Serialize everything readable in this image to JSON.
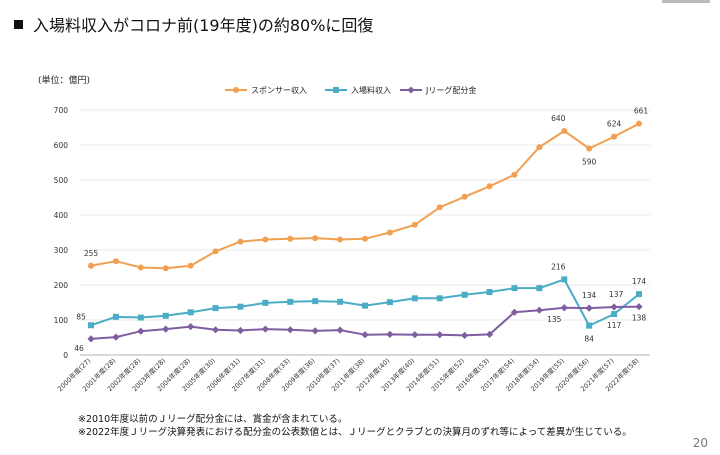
{
  "page": {
    "title": "入場料収入がコロナ前(19年度)の約80%に回復",
    "unit": "(単位：億円)",
    "footnotes": [
      "※2010年度以前のＪリーグ配分金には、賞金が含まれている。",
      "※2022年度Ｊリーグ決算発表における配分金の公表数値とは、Ｊリーグとクラブとの決算月のずれ等によって差異が生じている。"
    ],
    "page_number": "20"
  },
  "chart_data": {
    "type": "line",
    "title": "",
    "xlabel": "",
    "ylabel": "",
    "categories": [
      "2000年度(27)",
      "2001年度(28)",
      "2002年度(28)",
      "2003年度(28)",
      "2004年度(28)",
      "2005年度(30)",
      "2006年度(31)",
      "2007年度(31)",
      "2008年度(33)",
      "2009年度(36)",
      "2010年度(37)",
      "2011年度(38)",
      "2012年度(40)",
      "2013年度(40)",
      "2014年度(51)",
      "2015年度(52)",
      "2016年度(53)",
      "2017年度(54)",
      "2018年度(54)",
      "2019年度(55)",
      "2020年度(56)",
      "2021年度(57)",
      "2022年度(58)"
    ],
    "ylim": [
      0,
      700
    ],
    "yticks": [
      0,
      100,
      200,
      300,
      400,
      500,
      600,
      700
    ],
    "grid": true,
    "legend_position": "top",
    "series": [
      {
        "name": "スポンサー収入",
        "color": "#F0A050",
        "values": [
          255,
          268,
          250,
          248,
          255,
          296,
          324,
          330,
          332,
          334,
          330,
          332,
          350,
          372,
          422,
          452,
          482,
          515,
          594,
          640,
          590,
          624,
          661
        ]
      },
      {
        "name": "入場料収入",
        "color": "#4BACC6",
        "values": [
          85,
          109,
          107,
          112,
          122,
          134,
          138,
          149,
          152,
          154,
          152,
          141,
          151,
          162,
          162,
          172,
          180,
          191,
          191,
          216,
          84,
          117,
          174
        ]
      },
      {
        "name": "Jリーグ配分金",
        "color": "#7E5DA0",
        "values": [
          46,
          51,
          68,
          74,
          81,
          72,
          70,
          74,
          72,
          69,
          71,
          58,
          59,
          58,
          58,
          56,
          59,
          122,
          128,
          135,
          134,
          137,
          138
        ]
      }
    ],
    "annotations": [
      {
        "series": 0,
        "index": 0,
        "text": "255"
      },
      {
        "series": 0,
        "index": 19,
        "text": "640"
      },
      {
        "series": 0,
        "index": 20,
        "text": "590"
      },
      {
        "series": 0,
        "index": 21,
        "text": "624"
      },
      {
        "series": 0,
        "index": 22,
        "text": "661"
      },
      {
        "series": 1,
        "index": 0,
        "text": "85"
      },
      {
        "series": 1,
        "index": 19,
        "text": "216"
      },
      {
        "series": 1,
        "index": 20,
        "text": "84"
      },
      {
        "series": 1,
        "index": 21,
        "text": "117"
      },
      {
        "series": 1,
        "index": 22,
        "text": "174"
      },
      {
        "series": 2,
        "index": 0,
        "text": "46"
      },
      {
        "series": 2,
        "index": 19,
        "text": "135"
      },
      {
        "series": 2,
        "index": 20,
        "text": "134"
      },
      {
        "series": 2,
        "index": 21,
        "text": "137"
      },
      {
        "series": 2,
        "index": 22,
        "text": "138"
      }
    ]
  }
}
